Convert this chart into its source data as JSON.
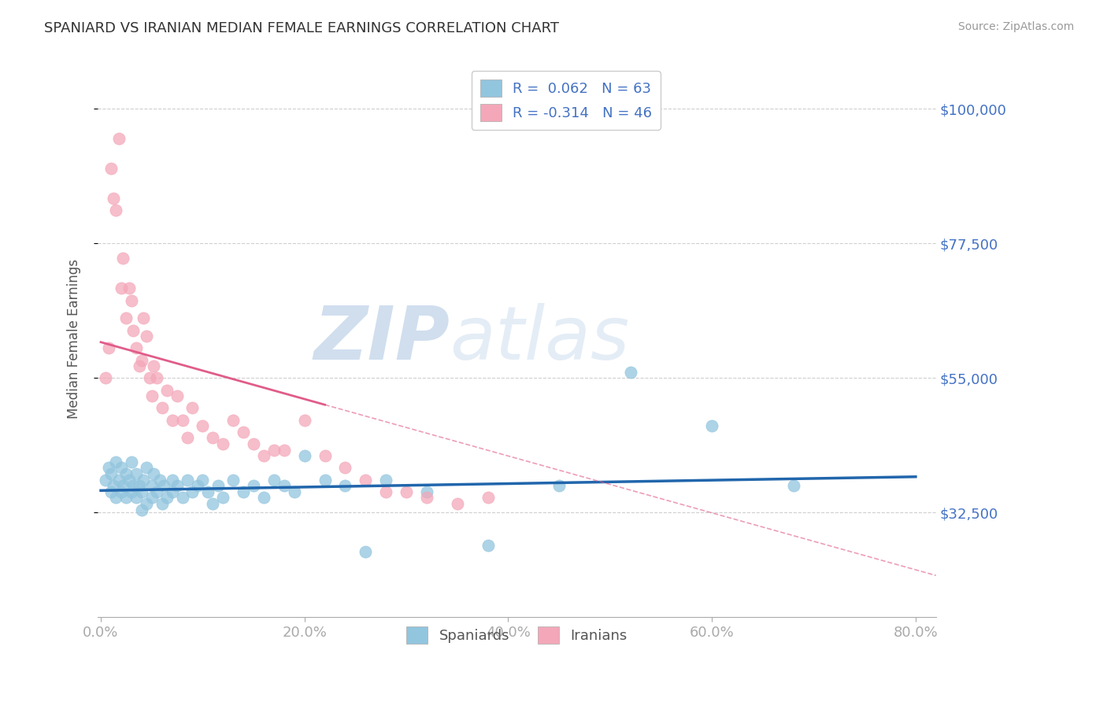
{
  "title": "SPANIARD VS IRANIAN MEDIAN FEMALE EARNINGS CORRELATION CHART",
  "source": "Source: ZipAtlas.com",
  "ylabel": "Median Female Earnings",
  "yticks": [
    32500,
    55000,
    77500,
    100000
  ],
  "ytick_labels": [
    "$32,500",
    "$55,000",
    "$77,500",
    "$100,000"
  ],
  "xlim": [
    -0.003,
    0.82
  ],
  "ylim": [
    15000,
    108000
  ],
  "xticks": [
    0.0,
    0.2,
    0.4,
    0.6,
    0.8
  ],
  "xtick_labels": [
    "0.0%",
    "20.0%",
    "40.0%",
    "60.0%",
    "80.0%"
  ],
  "spaniard_color": "#92c5de",
  "iranian_color": "#f4a7b9",
  "spaniard_line_color": "#2166ac",
  "iranian_line_color": "#e05c8a",
  "spaniard_R": 0.062,
  "spaniard_N": 63,
  "iranian_R": -0.314,
  "iranian_N": 46,
  "watermark_zip": "ZIP",
  "watermark_atlas": "atlas",
  "tick_color": "#4472c4",
  "grid_color": "#bbbbbb",
  "spaniard_scatter_x": [
    0.005,
    0.008,
    0.01,
    0.01,
    0.012,
    0.015,
    0.015,
    0.018,
    0.02,
    0.02,
    0.022,
    0.025,
    0.025,
    0.028,
    0.03,
    0.03,
    0.032,
    0.035,
    0.035,
    0.038,
    0.04,
    0.04,
    0.042,
    0.045,
    0.045,
    0.05,
    0.05,
    0.052,
    0.055,
    0.058,
    0.06,
    0.062,
    0.065,
    0.07,
    0.07,
    0.075,
    0.08,
    0.085,
    0.09,
    0.095,
    0.1,
    0.105,
    0.11,
    0.115,
    0.12,
    0.13,
    0.14,
    0.15,
    0.16,
    0.17,
    0.18,
    0.19,
    0.2,
    0.22,
    0.24,
    0.26,
    0.28,
    0.32,
    0.38,
    0.45,
    0.52,
    0.6,
    0.68
  ],
  "spaniard_scatter_y": [
    38000,
    40000,
    36000,
    39000,
    37000,
    35000,
    41000,
    38000,
    36000,
    40000,
    37000,
    35000,
    39000,
    38000,
    36000,
    41000,
    37000,
    35000,
    39000,
    37000,
    33000,
    36000,
    38000,
    34000,
    40000,
    35000,
    37000,
    39000,
    36000,
    38000,
    34000,
    37000,
    35000,
    36000,
    38000,
    37000,
    35000,
    38000,
    36000,
    37000,
    38000,
    36000,
    34000,
    37000,
    35000,
    38000,
    36000,
    37000,
    35000,
    38000,
    37000,
    36000,
    42000,
    38000,
    37000,
    26000,
    38000,
    36000,
    27000,
    37000,
    56000,
    47000,
    37000
  ],
  "iranian_scatter_x": [
    0.005,
    0.008,
    0.01,
    0.012,
    0.015,
    0.018,
    0.02,
    0.022,
    0.025,
    0.028,
    0.03,
    0.032,
    0.035,
    0.038,
    0.04,
    0.042,
    0.045,
    0.048,
    0.05,
    0.052,
    0.055,
    0.06,
    0.065,
    0.07,
    0.075,
    0.08,
    0.085,
    0.09,
    0.1,
    0.11,
    0.12,
    0.13,
    0.14,
    0.15,
    0.16,
    0.17,
    0.18,
    0.2,
    0.22,
    0.24,
    0.26,
    0.28,
    0.3,
    0.32,
    0.35,
    0.38
  ],
  "iranian_scatter_y": [
    55000,
    60000,
    90000,
    85000,
    83000,
    95000,
    70000,
    75000,
    65000,
    70000,
    68000,
    63000,
    60000,
    57000,
    58000,
    65000,
    62000,
    55000,
    52000,
    57000,
    55000,
    50000,
    53000,
    48000,
    52000,
    48000,
    45000,
    50000,
    47000,
    45000,
    44000,
    48000,
    46000,
    44000,
    42000,
    43000,
    43000,
    48000,
    42000,
    40000,
    38000,
    36000,
    36000,
    35000,
    34000,
    35000
  ]
}
